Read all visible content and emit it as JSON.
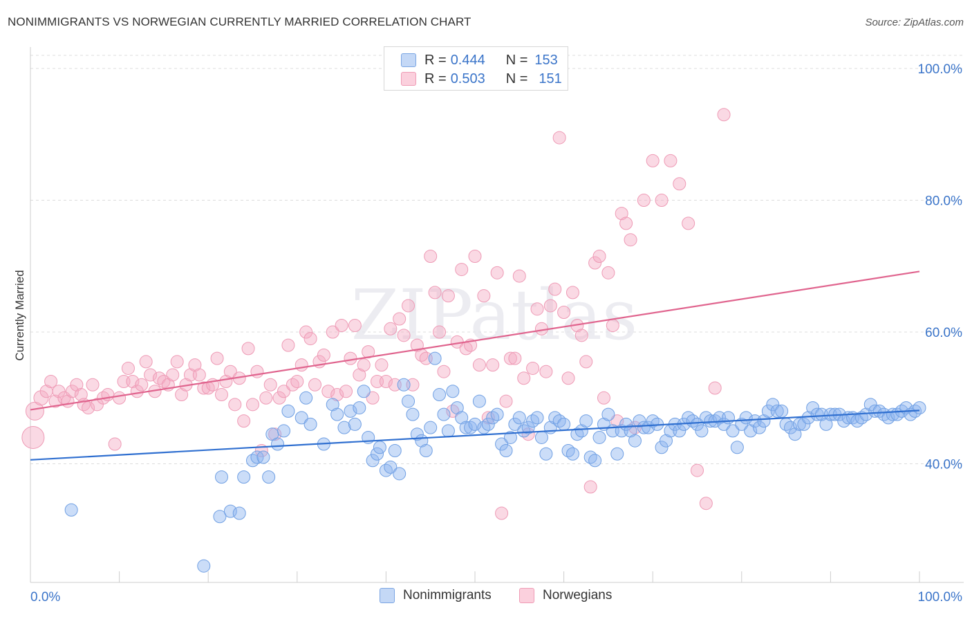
{
  "title": "NONIMMIGRANTS VS NORWEGIAN CURRENTLY MARRIED CORRELATION CHART",
  "source": "Source: ZipAtlas.com",
  "legend": {
    "rows": [
      {
        "r_label": "R = ",
        "r_value": "0.444",
        "n_label": "N = ",
        "n_value": "153"
      },
      {
        "r_label": "R = ",
        "r_value": "0.503",
        "n_label": "N = ",
        "n_value": "151"
      }
    ]
  },
  "bottom_legend": [
    "Nonimmigrants",
    "Norwegians"
  ],
  "watermark": "ZIPatlas",
  "chart_data": {
    "type": "scatter",
    "ylabel": "Currently Married",
    "xlabel": "",
    "xlim": [
      0,
      100
    ],
    "ylim": [
      22,
      102
    ],
    "x_tick_labels": [
      "0.0%",
      "100.0%"
    ],
    "y_ticks": [
      40,
      60,
      80,
      100
    ],
    "y_tick_labels": [
      "40.0%",
      "60.0%",
      "80.0%",
      "100.0%"
    ],
    "colors": {
      "blue": "#6fa1e8",
      "blue_line": "#2f6fd0",
      "pink": "#f2a3bb",
      "pink_line": "#e0648e"
    },
    "series": [
      {
        "name": "Nonimmigrants",
        "trend": {
          "x": [
            0,
            100
          ],
          "y": [
            40.6,
            48.1
          ]
        },
        "points": [
          [
            4.6,
            33
          ],
          [
            19.5,
            24.5
          ],
          [
            21.3,
            32
          ],
          [
            21.5,
            38
          ],
          [
            22.5,
            32.8
          ],
          [
            23.5,
            32.5
          ],
          [
            24,
            38
          ],
          [
            25,
            40.5
          ],
          [
            25.5,
            41
          ],
          [
            26.2,
            41
          ],
          [
            26.8,
            38
          ],
          [
            27.2,
            44.5
          ],
          [
            27.8,
            43
          ],
          [
            28.5,
            45
          ],
          [
            29,
            48
          ],
          [
            30.5,
            47
          ],
          [
            31,
            50
          ],
          [
            31.5,
            46
          ],
          [
            33,
            43
          ],
          [
            34,
            49
          ],
          [
            34.5,
            47.5
          ],
          [
            35.3,
            45.5
          ],
          [
            36,
            48
          ],
          [
            36.5,
            46
          ],
          [
            37,
            48.5
          ],
          [
            37.5,
            51
          ],
          [
            38,
            44
          ],
          [
            38.5,
            40.5
          ],
          [
            39,
            41.5
          ],
          [
            39.3,
            42.5
          ],
          [
            40,
            39
          ],
          [
            40.5,
            39.5
          ],
          [
            41,
            42
          ],
          [
            41.5,
            38.5
          ],
          [
            42,
            52
          ],
          [
            42.5,
            49.5
          ],
          [
            43,
            47.5
          ],
          [
            43.5,
            44.5
          ],
          [
            44,
            43.5
          ],
          [
            44.5,
            42
          ],
          [
            45,
            45.5
          ],
          [
            45.5,
            56
          ],
          [
            46,
            50.5
          ],
          [
            46.5,
            47.5
          ],
          [
            47,
            45
          ],
          [
            47.5,
            51
          ],
          [
            48,
            48.5
          ],
          [
            48.5,
            47
          ],
          [
            49,
            45.5
          ],
          [
            49.5,
            45.5
          ],
          [
            50,
            46
          ],
          [
            50.5,
            49.5
          ],
          [
            51,
            45.5
          ],
          [
            51.5,
            46
          ],
          [
            52,
            47
          ],
          [
            52.5,
            47.5
          ],
          [
            53,
            43
          ],
          [
            53.5,
            42
          ],
          [
            54,
            44
          ],
          [
            54.5,
            46
          ],
          [
            55,
            47
          ],
          [
            55.5,
            45
          ],
          [
            56,
            45.5
          ],
          [
            56.5,
            46.5
          ],
          [
            57,
            47
          ],
          [
            57.5,
            44
          ],
          [
            58,
            41.5
          ],
          [
            58.5,
            45.5
          ],
          [
            59,
            47
          ],
          [
            59.5,
            46.5
          ],
          [
            60,
            46
          ],
          [
            60.5,
            42
          ],
          [
            61,
            41.5
          ],
          [
            61.5,
            44.5
          ],
          [
            62,
            45
          ],
          [
            62.5,
            46.5
          ],
          [
            63,
            41
          ],
          [
            63.5,
            40.5
          ],
          [
            64,
            44
          ],
          [
            64.5,
            46
          ],
          [
            65,
            47.5
          ],
          [
            65.5,
            45
          ],
          [
            66,
            41.5
          ],
          [
            66.5,
            45
          ],
          [
            67,
            46
          ],
          [
            67.5,
            45
          ],
          [
            68,
            43.5
          ],
          [
            68.5,
            46.5
          ],
          [
            69,
            45.5
          ],
          [
            69.5,
            45.5
          ],
          [
            70,
            46.5
          ],
          [
            70.5,
            46
          ],
          [
            71,
            42.5
          ],
          [
            71.5,
            43.5
          ],
          [
            72,
            45
          ],
          [
            72.5,
            46
          ],
          [
            73,
            45
          ],
          [
            73.5,
            46
          ],
          [
            74,
            47
          ],
          [
            74.5,
            46.5
          ],
          [
            75,
            46
          ],
          [
            75.5,
            45
          ],
          [
            76,
            47
          ],
          [
            76.5,
            46.5
          ],
          [
            77,
            46.5
          ],
          [
            77.5,
            47
          ],
          [
            78,
            46
          ],
          [
            78.5,
            47
          ],
          [
            79,
            45
          ],
          [
            79.5,
            42.5
          ],
          [
            80,
            46
          ],
          [
            80.5,
            47
          ],
          [
            81,
            45
          ],
          [
            81.5,
            46.5
          ],
          [
            82,
            45.5
          ],
          [
            82.5,
            46.5
          ],
          [
            83,
            48
          ],
          [
            83.5,
            49
          ],
          [
            84,
            48
          ],
          [
            84.5,
            48
          ],
          [
            85,
            46
          ],
          [
            85.5,
            45.5
          ],
          [
            86,
            44.5
          ],
          [
            86.5,
            46
          ],
          [
            87,
            46
          ],
          [
            87.5,
            47
          ],
          [
            88,
            48.5
          ],
          [
            88.5,
            47.5
          ],
          [
            89,
            47.5
          ],
          [
            89.5,
            46
          ],
          [
            90,
            47.5
          ],
          [
            90.5,
            47.5
          ],
          [
            91,
            47.5
          ],
          [
            91.5,
            46.5
          ],
          [
            92,
            47
          ],
          [
            92.5,
            47
          ],
          [
            93,
            46.5
          ],
          [
            93.5,
            47
          ],
          [
            94,
            47.5
          ],
          [
            94.5,
            49
          ],
          [
            95,
            48
          ],
          [
            95.5,
            48
          ],
          [
            96,
            47.5
          ],
          [
            96.5,
            47
          ],
          [
            97,
            47.5
          ],
          [
            97.5,
            47.5
          ],
          [
            98,
            48
          ],
          [
            98.5,
            48.5
          ],
          [
            99,
            47.5
          ],
          [
            99.5,
            48
          ],
          [
            100,
            48.5
          ]
        ]
      },
      {
        "name": "Norwegians",
        "trend": {
          "x": [
            0,
            100
          ],
          "y": [
            48.2,
            69.2
          ]
        },
        "points": [
          [
            0.3,
            44
          ],
          [
            0.5,
            48
          ],
          [
            1.2,
            50
          ],
          [
            1.8,
            51
          ],
          [
            2.3,
            52.5
          ],
          [
            2.8,
            49.5
          ],
          [
            3.2,
            51
          ],
          [
            3.8,
            50
          ],
          [
            4.2,
            49.5
          ],
          [
            4.7,
            51
          ],
          [
            5.2,
            52
          ],
          [
            5.7,
            50.5
          ],
          [
            6,
            49
          ],
          [
            6.5,
            48.5
          ],
          [
            7,
            52
          ],
          [
            7.5,
            49
          ],
          [
            8.2,
            50
          ],
          [
            8.7,
            50.5
          ],
          [
            9.5,
            43
          ],
          [
            10,
            50
          ],
          [
            10.5,
            52.5
          ],
          [
            11,
            54.5
          ],
          [
            11.5,
            52.5
          ],
          [
            12,
            51
          ],
          [
            12.5,
            52
          ],
          [
            13,
            55.5
          ],
          [
            13.5,
            53.5
          ],
          [
            14,
            51
          ],
          [
            14.5,
            53
          ],
          [
            15,
            52.5
          ],
          [
            15.5,
            52
          ],
          [
            16,
            53.5
          ],
          [
            16.5,
            55.5
          ],
          [
            17,
            50.5
          ],
          [
            17.5,
            52
          ],
          [
            18,
            53.5
          ],
          [
            18.5,
            55
          ],
          [
            19,
            53.5
          ],
          [
            19.5,
            51.5
          ],
          [
            20,
            51.5
          ],
          [
            20.5,
            52
          ],
          [
            21,
            56
          ],
          [
            21.5,
            50.5
          ],
          [
            22,
            52.5
          ],
          [
            22.5,
            54
          ],
          [
            23,
            49
          ],
          [
            23.5,
            53
          ],
          [
            24,
            46.5
          ],
          [
            24.5,
            57.5
          ],
          [
            25,
            49
          ],
          [
            25.5,
            54
          ],
          [
            26,
            42
          ],
          [
            26.5,
            50
          ],
          [
            27,
            52
          ],
          [
            27.5,
            44.5
          ],
          [
            28,
            50
          ],
          [
            28.5,
            51
          ],
          [
            29,
            58
          ],
          [
            29.5,
            52
          ],
          [
            30,
            52.5
          ],
          [
            30.5,
            55
          ],
          [
            31,
            60
          ],
          [
            31.5,
            59
          ],
          [
            32,
            52
          ],
          [
            32.5,
            55.5
          ],
          [
            33,
            56.5
          ],
          [
            33.5,
            51
          ],
          [
            34,
            60
          ],
          [
            34.5,
            50.5
          ],
          [
            35,
            61
          ],
          [
            35.5,
            51
          ],
          [
            36,
            56
          ],
          [
            36.5,
            61
          ],
          [
            37,
            53.5
          ],
          [
            37.5,
            55
          ],
          [
            38,
            57
          ],
          [
            38.5,
            50
          ],
          [
            39,
            52.5
          ],
          [
            39.5,
            55
          ],
          [
            40,
            52.5
          ],
          [
            40.5,
            60.5
          ],
          [
            41,
            52
          ],
          [
            41.5,
            62
          ],
          [
            42,
            59.5
          ],
          [
            42.5,
            64
          ],
          [
            43,
            52
          ],
          [
            43.5,
            58
          ],
          [
            44,
            56.5
          ],
          [
            44.5,
            56
          ],
          [
            45,
            71.5
          ],
          [
            45.5,
            66
          ],
          [
            46,
            60
          ],
          [
            46.5,
            54
          ],
          [
            47,
            65.5
          ],
          [
            47.5,
            48
          ],
          [
            48,
            58.5
          ],
          [
            48.5,
            69.5
          ],
          [
            49,
            57.5
          ],
          [
            49.5,
            58
          ],
          [
            50,
            71.5
          ],
          [
            50.5,
            55
          ],
          [
            51,
            65.5
          ],
          [
            51.5,
            47
          ],
          [
            52,
            55
          ],
          [
            52.5,
            69
          ],
          [
            53,
            32.5
          ],
          [
            53.5,
            49.5
          ],
          [
            54,
            56
          ],
          [
            54.5,
            56
          ],
          [
            55,
            68.5
          ],
          [
            55.5,
            53
          ],
          [
            56,
            44.5
          ],
          [
            56.5,
            54.5
          ],
          [
            57,
            63.5
          ],
          [
            57.5,
            60.5
          ],
          [
            58,
            54
          ],
          [
            58.5,
            64
          ],
          [
            59,
            66.5
          ],
          [
            59.5,
            89.5
          ],
          [
            60,
            63
          ],
          [
            60.5,
            53
          ],
          [
            61,
            66
          ],
          [
            61.5,
            61
          ],
          [
            62,
            59.5
          ],
          [
            62.5,
            55.5
          ],
          [
            63,
            36.5
          ],
          [
            63.5,
            70.5
          ],
          [
            64,
            71.5
          ],
          [
            64.5,
            50
          ],
          [
            65,
            69
          ],
          [
            65.5,
            61
          ],
          [
            66,
            46.5
          ],
          [
            66.5,
            78
          ],
          [
            67,
            76.5
          ],
          [
            67.5,
            74
          ],
          [
            68,
            45.5
          ],
          [
            69,
            80
          ],
          [
            70,
            86
          ],
          [
            71,
            80
          ],
          [
            72,
            86
          ],
          [
            73,
            82.5
          ],
          [
            74,
            76.5
          ],
          [
            75,
            39
          ],
          [
            76,
            34
          ],
          [
            77,
            51.5
          ],
          [
            78,
            93
          ]
        ]
      }
    ]
  }
}
